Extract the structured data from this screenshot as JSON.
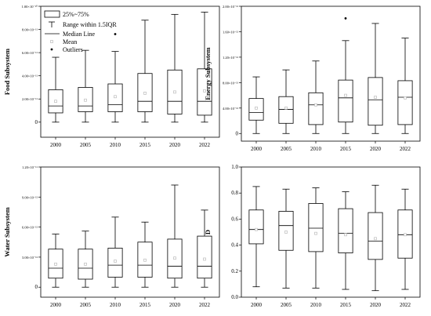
{
  "legend": {
    "items": [
      {
        "symbol": "box",
        "label": "25%~75%"
      },
      {
        "symbol": "whisker",
        "label": "Range within 1.5IQR"
      },
      {
        "symbol": "median",
        "label": "Median Line"
      },
      {
        "symbol": "mean",
        "label": "Mean"
      },
      {
        "symbol": "outlier",
        "label": "Outliers"
      }
    ]
  },
  "colors": {
    "box": "#000000",
    "mean": "#bbbbbb",
    "outlier": "#000000"
  },
  "chart_data": [
    {
      "type": "box",
      "ylabel": "Food Subsystem",
      "categories": [
        "2000",
        "2005",
        "2010",
        "2015",
        "2020",
        "2022"
      ],
      "ylim": [
        -1.3e-11,
        1e-10
      ],
      "yticks": [
        0,
        2e-11,
        4e-11,
        6e-11,
        8e-11,
        1e-10
      ],
      "ytick_labels": [
        "0",
        "2.00×10⁻¹¹",
        "4.00×10⁻¹¹",
        "6.00×10⁻¹¹",
        "8.00×10⁻¹¹",
        "1.00×10⁻¹⁰"
      ],
      "boxes": [
        {
          "year": "2000",
          "whislo": 0.0,
          "q1": 8e-12,
          "med": 1.4e-11,
          "q3": 2.8e-11,
          "whishi": 5.6e-11,
          "mean": 1.8e-11,
          "outliers": []
        },
        {
          "year": "2005",
          "whislo": 0.0,
          "q1": 9e-12,
          "med": 1.4e-11,
          "q3": 3e-11,
          "whishi": 6.2e-11,
          "mean": 1.9e-11,
          "outliers": []
        },
        {
          "year": "2010",
          "whislo": 0.0,
          "q1": 9e-12,
          "med": 1.5e-11,
          "q3": 3.3e-11,
          "whishi": 6.1e-11,
          "mean": 2.2e-11,
          "outliers": [
            7.6e-11
          ]
        },
        {
          "year": "2015",
          "whislo": 0.0,
          "q1": 9e-12,
          "med": 1.8e-11,
          "q3": 4.2e-11,
          "whishi": 8.8e-11,
          "mean": 2.5e-11,
          "outliers": []
        },
        {
          "year": "2020",
          "whislo": 0.0,
          "q1": 7e-12,
          "med": 1.8e-11,
          "q3": 4.5e-11,
          "whishi": 9.3e-11,
          "mean": 2.6e-11,
          "outliers": []
        },
        {
          "year": "2022",
          "whislo": 0.0,
          "q1": 6e-12,
          "med": 1.8e-11,
          "q3": 4.6e-11,
          "whishi": 9.5e-11,
          "mean": 2.7e-11,
          "outliers": []
        }
      ]
    },
    {
      "type": "box",
      "ylabel": "Energy Subsystem",
      "categories": [
        "2000",
        "2005",
        "2010",
        "2015",
        "2020",
        "2022"
      ],
      "ylim": [
        -1.2e-13,
        2e-12
      ],
      "yticks": [
        0,
        4e-13,
        8e-13,
        1.2e-12,
        1.6e-12,
        2e-12
      ],
      "ytick_labels": [
        "0",
        "4.00×10⁻¹³",
        "8.00×10⁻¹³",
        "1.20×10⁻¹²",
        "1.60×10⁻¹²",
        "2.00×10⁻¹²"
      ],
      "boxes": [
        {
          "year": "2000",
          "whislo": 0.0,
          "q1": 2.1e-13,
          "med": 3.3e-13,
          "q3": 5.5e-13,
          "whishi": 8.9e-13,
          "mean": 4e-13,
          "outliers": []
        },
        {
          "year": "2005",
          "whislo": 0.0,
          "q1": 1.6e-13,
          "med": 3.8e-13,
          "q3": 5.8e-13,
          "whishi": 1e-12,
          "mean": 4e-13,
          "outliers": []
        },
        {
          "year": "2010",
          "whislo": 0.0,
          "q1": 1.4e-13,
          "med": 4.5e-13,
          "q3": 6.4e-13,
          "whishi": 1.14e-12,
          "mean": 4.5e-13,
          "outliers": []
        },
        {
          "year": "2015",
          "whislo": 0.0,
          "q1": 1.8e-13,
          "med": 5.6e-13,
          "q3": 8.4e-13,
          "whishi": 1.46e-12,
          "mean": 6e-13,
          "outliers": [
            1.81e-12
          ]
        },
        {
          "year": "2020",
          "whislo": 0.0,
          "q1": 1.3e-13,
          "med": 5.3e-13,
          "q3": 8.8e-13,
          "whishi": 1.73e-12,
          "mean": 5.7e-13,
          "outliers": []
        },
        {
          "year": "2022",
          "whislo": 0.0,
          "q1": 1.4e-13,
          "med": 5.7e-13,
          "q3": 8.3e-13,
          "whishi": 1.5e-12,
          "mean": 5.6e-13,
          "outliers": []
        }
      ]
    },
    {
      "type": "box",
      "ylabel": "Water Subsystem",
      "categories": [
        "2000",
        "2005",
        "2010",
        "2015",
        "2020",
        "2022"
      ],
      "ylim": [
        -1e-12,
        1.2e-11
      ],
      "yticks": [
        0,
        3e-12,
        6e-12,
        9e-12,
        1.2e-11
      ],
      "ytick_labels": [
        "0",
        "3.00×10⁻¹²",
        "6.00×10⁻¹²",
        "9.00×10⁻¹²",
        "1.20×10⁻¹¹"
      ],
      "boxes": [
        {
          "year": "2000",
          "whislo": 0.0,
          "q1": 9e-13,
          "med": 1.9e-12,
          "q3": 3.8e-12,
          "whishi": 5.3e-12,
          "mean": 2.3e-12,
          "outliers": []
        },
        {
          "year": "2005",
          "whislo": 0.0,
          "q1": 8e-13,
          "med": 1.9e-12,
          "q3": 3.8e-12,
          "whishi": 5.6e-12,
          "mean": 2.3e-12,
          "outliers": []
        },
        {
          "year": "2010",
          "whislo": 0.0,
          "q1": 1e-12,
          "med": 2.2e-12,
          "q3": 3.9e-12,
          "whishi": 7e-12,
          "mean": 2.6e-12,
          "outliers": []
        },
        {
          "year": "2015",
          "whislo": 0.0,
          "q1": 1e-12,
          "med": 2.2e-12,
          "q3": 4.5e-12,
          "whishi": 6.5e-12,
          "mean": 2.7e-12,
          "outliers": []
        },
        {
          "year": "2020",
          "whislo": 0.0,
          "q1": 9e-13,
          "med": 2.1e-12,
          "q3": 4.8e-12,
          "whishi": 1.02e-11,
          "mean": 2.9e-12,
          "outliers": []
        },
        {
          "year": "2022",
          "whislo": 0.0,
          "q1": 9e-13,
          "med": 2.1e-12,
          "q3": 5.1e-12,
          "whishi": 7.7e-12,
          "mean": 2.8e-12,
          "outliers": []
        }
      ]
    },
    {
      "type": "box",
      "ylabel": "D",
      "categories": [
        "2000",
        "2005",
        "2010",
        "2015",
        "2020",
        "2022"
      ],
      "ylim": [
        0,
        1.0
      ],
      "yticks": [
        0,
        0.2,
        0.4,
        0.6,
        0.8,
        1.0
      ],
      "ytick_labels": [
        "0.0",
        "0.2",
        "0.4",
        "0.6",
        "0.8",
        "1.0"
      ],
      "boxes": [
        {
          "year": "2000",
          "whislo": 0.08,
          "q1": 0.41,
          "med": 0.52,
          "q3": 0.67,
          "whishi": 0.85,
          "mean": 0.52,
          "outliers": []
        },
        {
          "year": "2005",
          "whislo": 0.07,
          "q1": 0.36,
          "med": 0.55,
          "q3": 0.66,
          "whishi": 0.83,
          "mean": 0.5,
          "outliers": []
        },
        {
          "year": "2010",
          "whislo": 0.07,
          "q1": 0.35,
          "med": 0.53,
          "q3": 0.72,
          "whishi": 0.84,
          "mean": 0.49,
          "outliers": []
        },
        {
          "year": "2015",
          "whislo": 0.06,
          "q1": 0.34,
          "med": 0.49,
          "q3": 0.68,
          "whishi": 0.81,
          "mean": 0.48,
          "outliers": []
        },
        {
          "year": "2020",
          "whislo": 0.05,
          "q1": 0.29,
          "med": 0.43,
          "q3": 0.65,
          "whishi": 0.86,
          "mean": 0.45,
          "outliers": []
        },
        {
          "year": "2022",
          "whislo": 0.06,
          "q1": 0.3,
          "med": 0.48,
          "q3": 0.67,
          "whishi": 0.83,
          "mean": 0.48,
          "outliers": []
        }
      ]
    }
  ]
}
